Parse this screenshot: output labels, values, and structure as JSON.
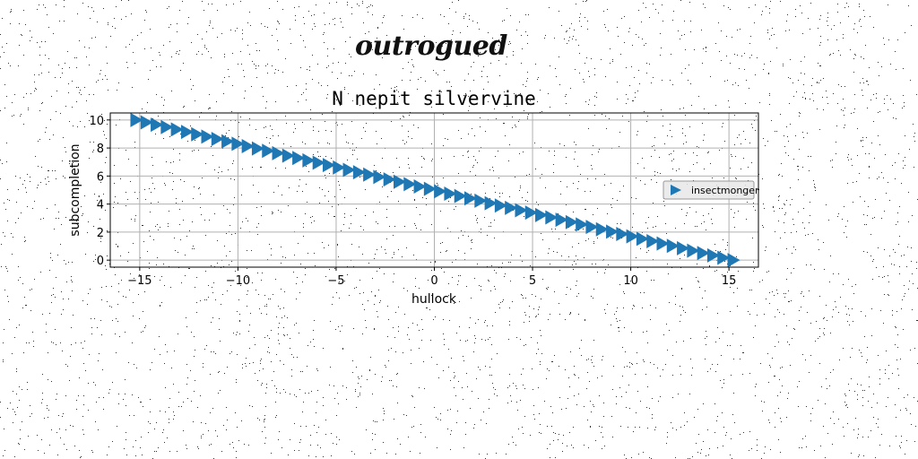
{
  "logo_text": "outrogued",
  "chart_data": {
    "type": "scatter",
    "title": "N nepit silvervine",
    "xlabel": "hullock",
    "ylabel": "subcompletion",
    "xlim": [
      -16.5,
      16.5
    ],
    "ylim": [
      -0.5,
      10.5
    ],
    "xticks": [
      -15,
      -10,
      -5,
      0,
      5,
      10,
      15
    ],
    "yticks": [
      0,
      2,
      4,
      6,
      8,
      10
    ],
    "grid": true,
    "legend_position": "center-right",
    "marker": "triangle-right",
    "color": "#1f77b4",
    "series": [
      {
        "name": "insectmonger",
        "x_start": -15.2,
        "x_end": 15.2,
        "y_start": 10.0,
        "y_end": 0.0,
        "points": 60
      }
    ]
  }
}
